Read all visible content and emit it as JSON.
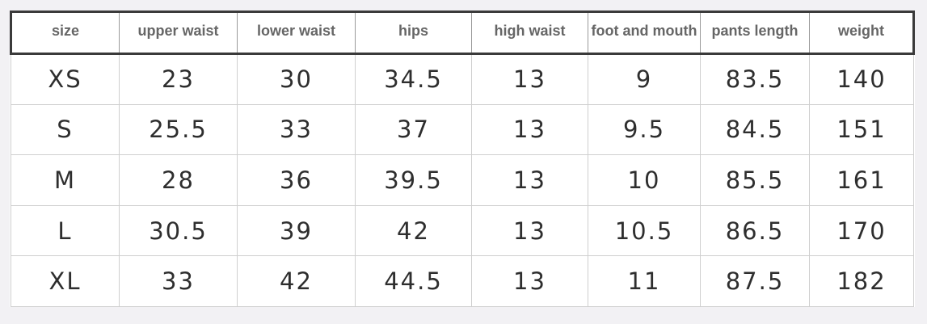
{
  "table": {
    "headers": {
      "size": "size",
      "upper_waist": "upper waist",
      "lower_waist": "lower waist",
      "hips": "hips",
      "high_waist": "high waist",
      "foot_and_mouth": "foot and mouth",
      "pants_length": "pants length",
      "weight": "weight"
    },
    "rows": [
      {
        "size": "XS",
        "upper_waist": "23",
        "lower_waist": "30",
        "hips": "34.5",
        "high_waist": "13",
        "foot_and_mouth": "9",
        "pants_length": "83.5",
        "weight": "140"
      },
      {
        "size": "S",
        "upper_waist": "25.5",
        "lower_waist": "33",
        "hips": "37",
        "high_waist": "13",
        "foot_and_mouth": "9.5",
        "pants_length": "84.5",
        "weight": "151"
      },
      {
        "size": "M",
        "upper_waist": "28",
        "lower_waist": "36",
        "hips": "39.5",
        "high_waist": "13",
        "foot_and_mouth": "10",
        "pants_length": "85.5",
        "weight": "161"
      },
      {
        "size": "L",
        "upper_waist": "30.5",
        "lower_waist": "39",
        "hips": "42",
        "high_waist": "13",
        "foot_and_mouth": "10.5",
        "pants_length": "86.5",
        "weight": "170"
      },
      {
        "size": "XL",
        "upper_waist": "33",
        "lower_waist": "42",
        "hips": "44.5",
        "high_waist": "13",
        "foot_and_mouth": "11",
        "pants_length": "87.5",
        "weight": "182"
      }
    ]
  }
}
